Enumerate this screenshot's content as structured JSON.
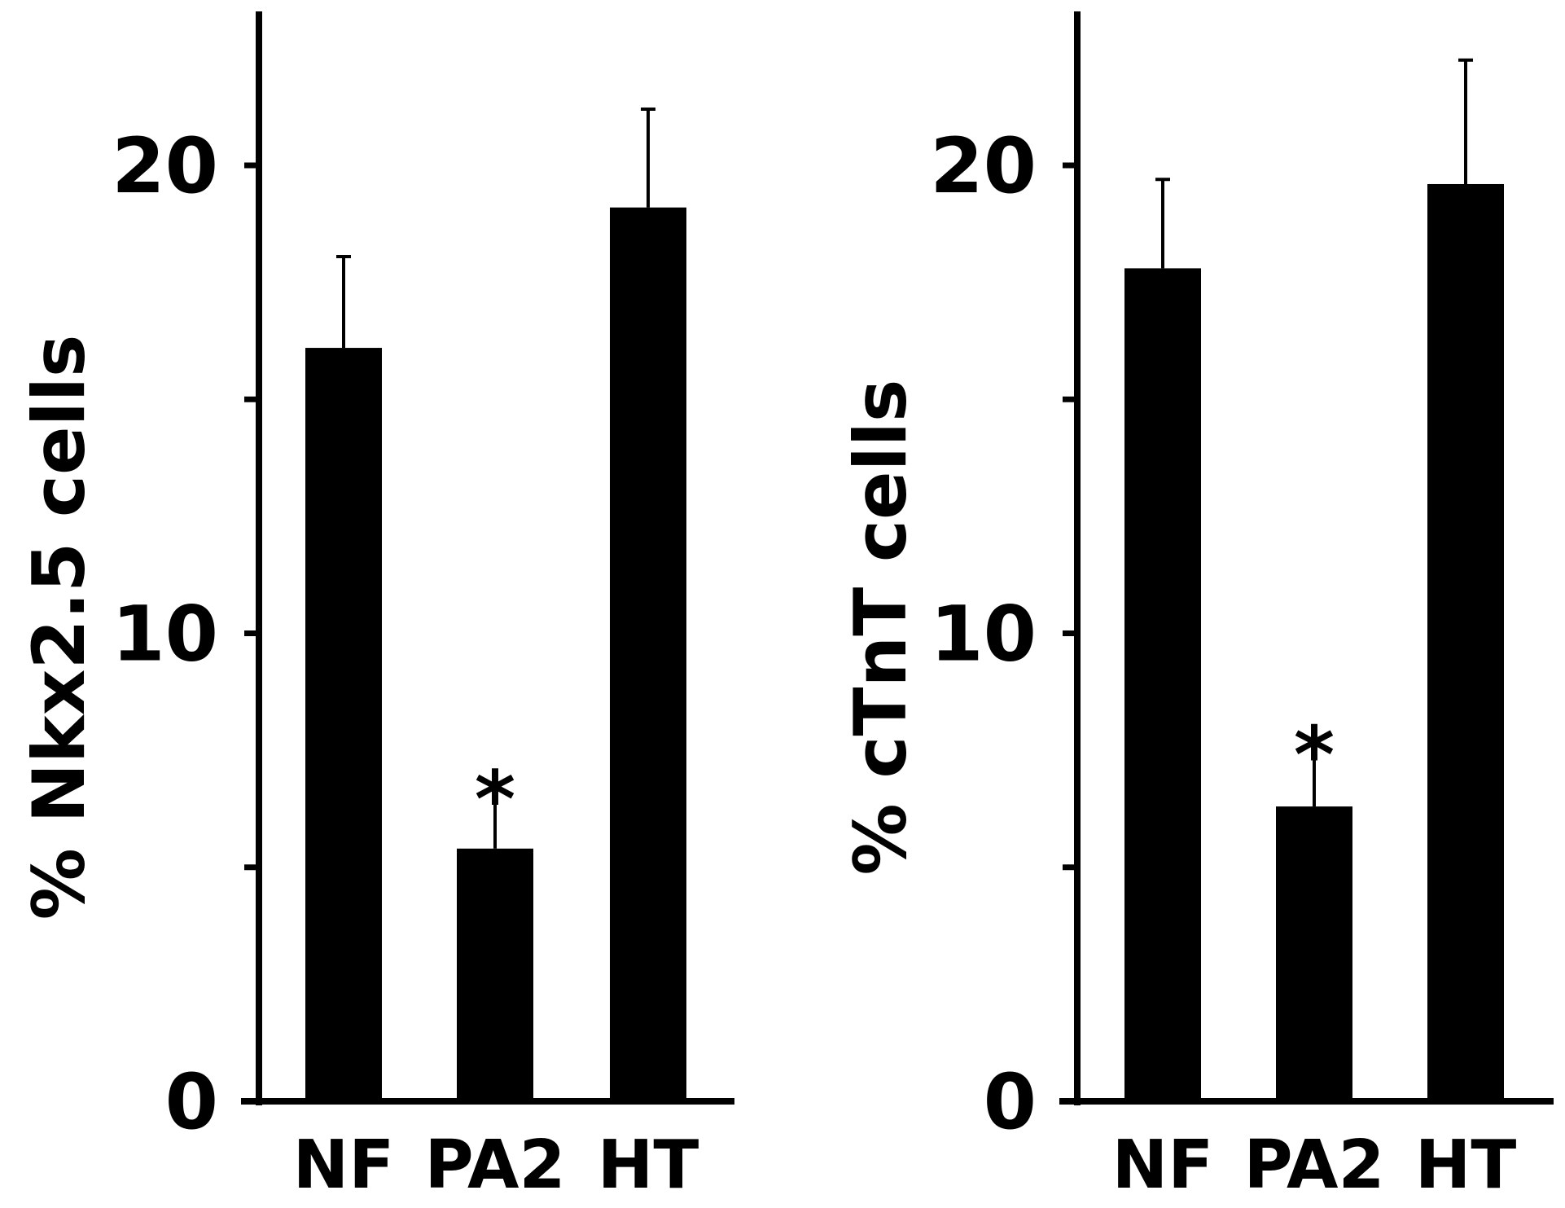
{
  "colors": {
    "ink": "#000000",
    "background": "#ffffff"
  },
  "chart_data": [
    {
      "type": "bar",
      "ylabel": "% Nkx2.5 cells",
      "categories": [
        "NF",
        "PA2",
        "HT"
      ],
      "values": [
        16.1,
        5.4,
        19.1
      ],
      "errors": [
        1.95,
        1.25,
        2.1
      ],
      "annotations": [
        "",
        "*",
        ""
      ],
      "ylim": [
        0,
        23.4
      ],
      "yticks": [
        0,
        5,
        10,
        15,
        20
      ],
      "ytick_labels": [
        "0",
        "",
        "10",
        "",
        "20"
      ],
      "grid": false
    },
    {
      "type": "bar",
      "ylabel": "% cTnT cells",
      "categories": [
        "NF",
        "PA2",
        "HT"
      ],
      "values": [
        17.8,
        6.3,
        19.6
      ],
      "errors": [
        1.9,
        1.3,
        2.65
      ],
      "annotations": [
        "",
        "*",
        ""
      ],
      "ylim": [
        0,
        23.4
      ],
      "yticks": [
        0,
        5,
        10,
        15,
        20
      ],
      "ytick_labels": [
        "0",
        "",
        "10",
        "",
        "20"
      ],
      "grid": false
    }
  ]
}
